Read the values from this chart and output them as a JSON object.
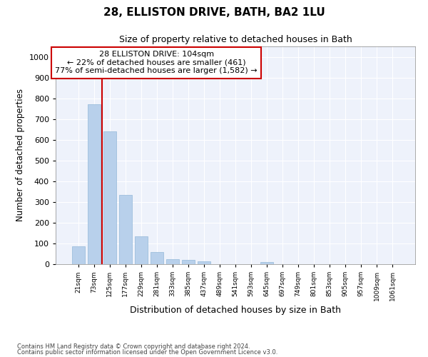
{
  "title": "28, ELLISTON DRIVE, BATH, BA2 1LU",
  "subtitle": "Size of property relative to detached houses in Bath",
  "xlabel": "Distribution of detached houses by size in Bath",
  "ylabel": "Number of detached properties",
  "categories": [
    "21sqm",
    "73sqm",
    "125sqm",
    "177sqm",
    "229sqm",
    "281sqm",
    "333sqm",
    "385sqm",
    "437sqm",
    "489sqm",
    "541sqm",
    "593sqm",
    "645sqm",
    "697sqm",
    "749sqm",
    "801sqm",
    "853sqm",
    "905sqm",
    "957sqm",
    "1009sqm",
    "1061sqm"
  ],
  "values": [
    85,
    770,
    640,
    335,
    135,
    60,
    25,
    20,
    15,
    0,
    0,
    0,
    12,
    0,
    0,
    0,
    0,
    0,
    0,
    0,
    0
  ],
  "bar_color": "#b8d0eb",
  "bar_edge_color": "#93b8d9",
  "background_color": "#eef2fb",
  "grid_color": "#ffffff",
  "redline_x": 2.0,
  "annotation_text": "28 ELLISTON DRIVE: 104sqm\n← 22% of detached houses are smaller (461)\n77% of semi-detached houses are larger (1,582) →",
  "annotation_box_color": "#ffffff",
  "annotation_box_edge_color": "#cc0000",
  "footer_line1": "Contains HM Land Registry data © Crown copyright and database right 2024.",
  "footer_line2": "Contains public sector information licensed under the Open Government Licence v3.0.",
  "ylim": [
    0,
    1050
  ],
  "yticks": [
    0,
    100,
    200,
    300,
    400,
    500,
    600,
    700,
    800,
    900,
    1000
  ]
}
